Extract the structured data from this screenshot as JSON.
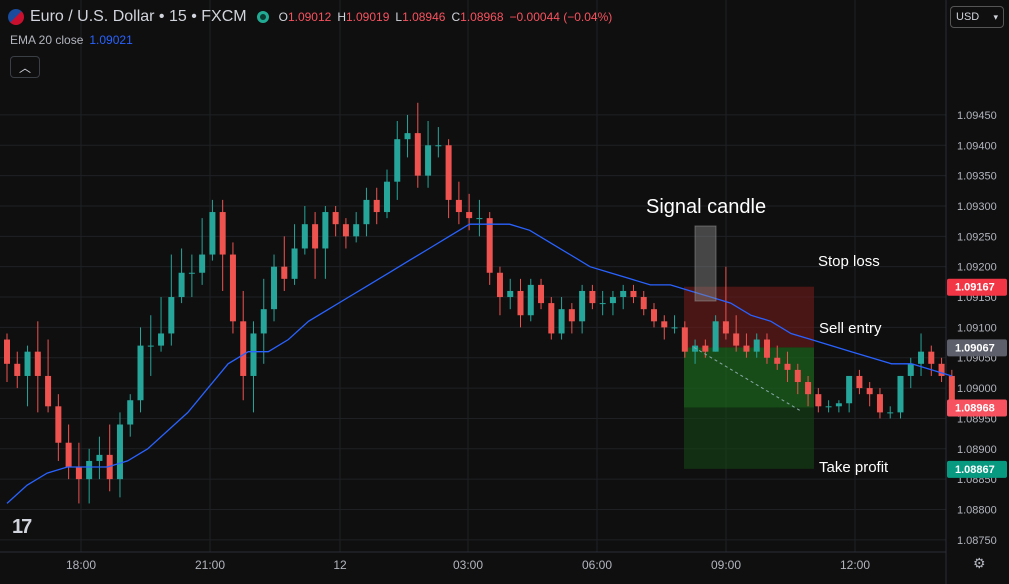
{
  "header": {
    "symbol": "Euro / U.S. Dollar • 15 • FXCM",
    "open_label": "O",
    "open": "1.09012",
    "high_label": "H",
    "high": "1.09019",
    "low_label": "L",
    "low": "1.08946",
    "close_label": "C",
    "close": "1.08968",
    "change": "−0.00044 (−0.04%)"
  },
  "indicator": {
    "label": "EMA 20 close",
    "value": "1.09021",
    "color": "#2962ff"
  },
  "currency_select": {
    "value": "USD"
  },
  "colors": {
    "up": "#26a69a",
    "down": "#ef5350",
    "ema": "#2962ff",
    "stop": "#f23645",
    "entry": "#5d606b",
    "last": "#f7525f",
    "target": "#089981"
  },
  "chart_data": {
    "type": "candlestick",
    "ylim": [
      1.0873,
      1.0958
    ],
    "y_ticks": [
      "1.08750",
      "1.08800",
      "1.08850",
      "1.08900",
      "1.08950",
      "1.09000",
      "1.09050",
      "1.09100",
      "1.09150",
      "1.09200",
      "1.09250",
      "1.09300",
      "1.09350",
      "1.09400",
      "1.09450"
    ],
    "x_ticks": [
      "18:00",
      "21:00",
      "12",
      "03:00",
      "06:00",
      "09:00",
      "12:00"
    ],
    "candles": [
      [
        1.0908,
        1.0909,
        1.0901,
        1.0904
      ],
      [
        1.0904,
        1.0906,
        1.09,
        1.0902
      ],
      [
        1.0902,
        1.0907,
        1.0897,
        1.0906
      ],
      [
        1.0906,
        1.0911,
        1.0896,
        1.0902
      ],
      [
        1.0902,
        1.0908,
        1.0896,
        1.0897
      ],
      [
        1.0897,
        1.0899,
        1.0888,
        1.0891
      ],
      [
        1.0891,
        1.0894,
        1.0885,
        1.0887
      ],
      [
        1.0887,
        1.0891,
        1.0881,
        1.0885
      ],
      [
        1.0885,
        1.089,
        1.0881,
        1.0888
      ],
      [
        1.0888,
        1.0892,
        1.0885,
        1.0889
      ],
      [
        1.0889,
        1.0894,
        1.0883,
        1.0885
      ],
      [
        1.0885,
        1.0896,
        1.0882,
        1.0894
      ],
      [
        1.0894,
        1.0899,
        1.0892,
        1.0898
      ],
      [
        1.0898,
        1.091,
        1.0896,
        1.0907
      ],
      [
        1.0907,
        1.0912,
        1.0902,
        1.0907
      ],
      [
        1.0907,
        1.0915,
        1.0906,
        1.0909
      ],
      [
        1.0909,
        1.0922,
        1.0907,
        1.0915
      ],
      [
        1.0915,
        1.0923,
        1.0914,
        1.0919
      ],
      [
        1.0919,
        1.0922,
        1.0915,
        1.0919
      ],
      [
        1.0919,
        1.0928,
        1.0917,
        1.0922
      ],
      [
        1.0922,
        1.0931,
        1.0921,
        1.0929
      ],
      [
        1.0929,
        1.0931,
        1.0916,
        1.0922
      ],
      [
        1.0922,
        1.0924,
        1.0909,
        1.0911
      ],
      [
        1.0911,
        1.0916,
        1.0898,
        1.0902
      ],
      [
        1.0902,
        1.0911,
        1.0896,
        1.0909
      ],
      [
        1.0909,
        1.0918,
        1.0904,
        1.0913
      ],
      [
        1.0913,
        1.0922,
        1.0911,
        1.092
      ],
      [
        1.092,
        1.0925,
        1.0916,
        1.0918
      ],
      [
        1.0918,
        1.0927,
        1.0917,
        1.0923
      ],
      [
        1.0923,
        1.093,
        1.0922,
        1.0927
      ],
      [
        1.0927,
        1.0929,
        1.0918,
        1.0923
      ],
      [
        1.0923,
        1.093,
        1.0918,
        1.0929
      ],
      [
        1.0929,
        1.093,
        1.0925,
        1.0927
      ],
      [
        1.0927,
        1.0928,
        1.0923,
        1.0925
      ],
      [
        1.0925,
        1.0929,
        1.0924,
        1.0927
      ],
      [
        1.0927,
        1.0933,
        1.0925,
        1.0931
      ],
      [
        1.0931,
        1.0933,
        1.0927,
        1.0929
      ],
      [
        1.0929,
        1.0936,
        1.0928,
        1.0934
      ],
      [
        1.0934,
        1.0944,
        1.0931,
        1.0941
      ],
      [
        1.0941,
        1.0945,
        1.0938,
        1.0942
      ],
      [
        1.0942,
        1.0947,
        1.0933,
        1.0935
      ],
      [
        1.0935,
        1.0944,
        1.0933,
        1.094
      ],
      [
        1.094,
        1.0943,
        1.0938,
        1.094
      ],
      [
        1.094,
        1.0941,
        1.0928,
        1.0931
      ],
      [
        1.0931,
        1.0934,
        1.0927,
        1.0929
      ],
      [
        1.0929,
        1.0932,
        1.0926,
        1.0928
      ],
      [
        1.0928,
        1.0931,
        1.0925,
        1.0928
      ],
      [
        1.0928,
        1.0929,
        1.0917,
        1.0919
      ],
      [
        1.0919,
        1.092,
        1.0912,
        1.0915
      ],
      [
        1.0915,
        1.0918,
        1.0913,
        1.0916
      ],
      [
        1.0916,
        1.0918,
        1.091,
        1.0912
      ],
      [
        1.0912,
        1.0918,
        1.0911,
        1.0917
      ],
      [
        1.0917,
        1.0918,
        1.0913,
        1.0914
      ],
      [
        1.0914,
        1.0915,
        1.0908,
        1.0909
      ],
      [
        1.0909,
        1.0915,
        1.0908,
        1.0913
      ],
      [
        1.0913,
        1.0914,
        1.0909,
        1.0911
      ],
      [
        1.0911,
        1.0917,
        1.0909,
        1.0916
      ],
      [
        1.0916,
        1.0917,
        1.0913,
        1.0914
      ],
      [
        1.0914,
        1.0916,
        1.0912,
        1.0914
      ],
      [
        1.0914,
        1.0916,
        1.0912,
        1.0915
      ],
      [
        1.0915,
        1.0917,
        1.0913,
        1.0916
      ],
      [
        1.0916,
        1.0917,
        1.0914,
        1.0915
      ],
      [
        1.0915,
        1.0916,
        1.0912,
        1.0913
      ],
      [
        1.0913,
        1.0914,
        1.091,
        1.0911
      ],
      [
        1.0911,
        1.0912,
        1.0908,
        1.091
      ],
      [
        1.091,
        1.0912,
        1.0909,
        1.091
      ],
      [
        1.091,
        1.0911,
        1.0905,
        1.0906
      ],
      [
        1.0906,
        1.0908,
        1.0904,
        1.0907
      ],
      [
        1.0907,
        1.0908,
        1.0905,
        1.0906
      ],
      [
        1.0906,
        1.0912,
        1.0906,
        1.0911
      ],
      [
        1.0911,
        1.092,
        1.0908,
        1.0909
      ],
      [
        1.0909,
        1.0912,
        1.0906,
        1.0907
      ],
      [
        1.0907,
        1.0909,
        1.0905,
        1.0906
      ],
      [
        1.0906,
        1.0909,
        1.0905,
        1.0908
      ],
      [
        1.0908,
        1.0909,
        1.0904,
        1.0905
      ],
      [
        1.0905,
        1.0907,
        1.0903,
        1.0904
      ],
      [
        1.0904,
        1.0906,
        1.0901,
        1.0903
      ],
      [
        1.0903,
        1.0904,
        1.0899,
        1.0901
      ],
      [
        1.0901,
        1.0902,
        1.0897,
        1.0899
      ],
      [
        1.0899,
        1.09,
        1.0896,
        1.0897
      ],
      [
        1.0897,
        1.0898,
        1.0896,
        1.0897
      ],
      [
        1.0897,
        1.0898,
        1.0896,
        1.08975
      ],
      [
        1.08975,
        1.0902,
        1.0896,
        1.0902
      ],
      [
        1.0902,
        1.0903,
        1.0899,
        1.09
      ],
      [
        1.09,
        1.0901,
        1.0897,
        1.0899
      ],
      [
        1.0899,
        1.09,
        1.0895,
        1.0896
      ],
      [
        1.0896,
        1.0897,
        1.0895,
        1.0896
      ],
      [
        1.0896,
        1.0902,
        1.0895,
        1.0902
      ],
      [
        1.0902,
        1.0905,
        1.09,
        1.0904
      ],
      [
        1.0904,
        1.0909,
        1.0902,
        1.0906
      ],
      [
        1.0906,
        1.0907,
        1.0902,
        1.0904
      ],
      [
        1.0904,
        1.0905,
        1.0901,
        1.0902
      ],
      [
        1.0902,
        1.0903,
        1.0896,
        1.0898
      ]
    ],
    "ema": [
      1.0881,
      1.0884,
      1.0886,
      1.0887,
      1.0887,
      1.0887,
      1.0888,
      1.089,
      1.0893,
      1.0896,
      1.09,
      1.0904,
      1.0906,
      1.0906,
      1.0908,
      1.0911,
      1.0913,
      1.0915,
      1.0917,
      1.0919,
      1.0921,
      1.0923,
      1.0925,
      1.0927,
      1.0927,
      1.0927,
      1.0926,
      1.0924,
      1.0922,
      1.092,
      1.0919,
      1.0918,
      1.0917,
      1.0917,
      1.0916,
      1.0915,
      1.0914,
      1.0912,
      1.0911,
      1.0909,
      1.0908,
      1.0907,
      1.0906,
      1.0905,
      1.0904,
      1.0904,
      1.0903,
      1.0902
    ],
    "annotations": [
      "Signal candle",
      "Stop loss",
      "Sell entry",
      "Take profit"
    ],
    "price_labels": [
      {
        "value": "1.09167",
        "color": "#f23645"
      },
      {
        "value": "1.09067",
        "color": "#5d606b"
      },
      {
        "value": "1.08968",
        "color": "#f7525f"
      },
      {
        "value": "1.08867",
        "color": "#089981"
      }
    ],
    "position": {
      "stop": 1.09167,
      "entry": 1.09067,
      "target": 1.08867,
      "last": 1.08968
    }
  }
}
